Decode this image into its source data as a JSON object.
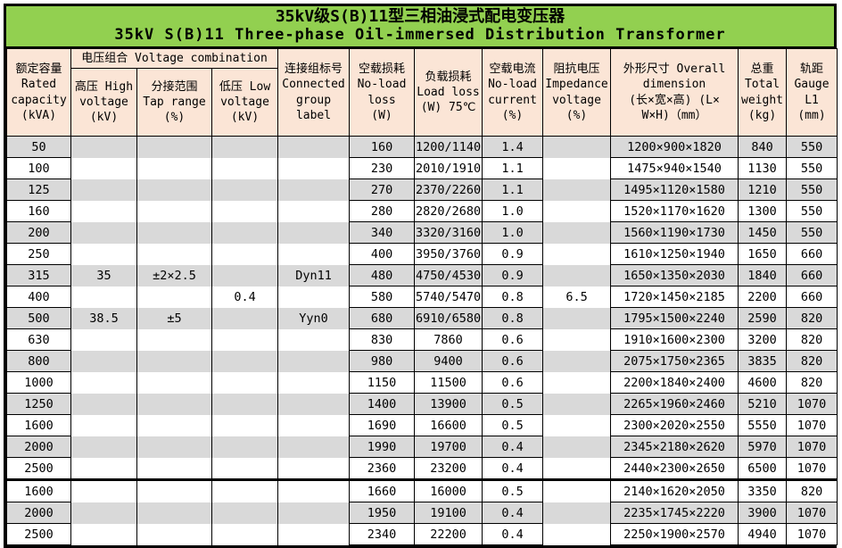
{
  "title": {
    "line1": "35kV级S(B)11型三相油浸式配电变压器",
    "line2": "35kV S(B)11 Three-phase Oil-immersed Distribution Transformer"
  },
  "colors": {
    "title_bg": "#92D050",
    "header_bg": "#FBE5D6",
    "stripe_gray": "#D9D9D9",
    "border": "#000000"
  },
  "headers": {
    "capacity": "额定容量\nRated\ncapacity\n(kVA)",
    "voltage_combination": "电压组合 Voltage combination",
    "high_voltage": "高压 High\nvoltage\n(kV)",
    "tap_range": "分接范围\nTap range\n(%)",
    "low_voltage": "低压 Low\nvoltage\n(kV)",
    "connection_group": "连接组标号\nConnected\ngroup\nlabel",
    "no_load_loss": "空载损耗\nNo-load\nloss\n(W)",
    "load_loss": "负载损耗\nLoad loss\n(W) 75℃",
    "no_load_current": "空载电流\nNo-load\ncurrent\n(%)",
    "impedance_voltage": "阻抗电压\nImpedance\nvoltage\n(%)",
    "dimensions": "外形尺寸 Overall\ndimension\n(长×宽×高) (L×\nW×H)（mm）",
    "total_weight": "总重\nTotal\nweight\n(kg)",
    "gauge": "轨距\nGauge\nL1\n(mm)"
  },
  "table": {
    "groups": [
      {
        "rows": [
          {
            "capacity": "50",
            "high_voltage": "",
            "tap_range": "",
            "low_voltage": "",
            "connection_group": "",
            "no_load_loss": "160",
            "load_loss": "1200/1140",
            "no_load_current": "1.4",
            "impedance_voltage": "",
            "dimensions": "1200×900×1820",
            "total_weight": "840",
            "gauge": "550"
          },
          {
            "capacity": "100",
            "high_voltage": "",
            "tap_range": "",
            "low_voltage": "",
            "connection_group": "",
            "no_load_loss": "230",
            "load_loss": "2010/1910",
            "no_load_current": "1.1",
            "impedance_voltage": "",
            "dimensions": "1475×940×1540",
            "total_weight": "1130",
            "gauge": "550"
          },
          {
            "capacity": "125",
            "high_voltage": "",
            "tap_range": "",
            "low_voltage": "",
            "connection_group": "",
            "no_load_loss": "270",
            "load_loss": "2370/2260",
            "no_load_current": "1.1",
            "impedance_voltage": "",
            "dimensions": "1495×1120×1580",
            "total_weight": "1210",
            "gauge": "550"
          },
          {
            "capacity": "160",
            "high_voltage": "",
            "tap_range": "",
            "low_voltage": "",
            "connection_group": "",
            "no_load_loss": "280",
            "load_loss": "2820/2680",
            "no_load_current": "1.0",
            "impedance_voltage": "",
            "dimensions": "1520×1170×1620",
            "total_weight": "1300",
            "gauge": "550"
          },
          {
            "capacity": "200",
            "high_voltage": "",
            "tap_range": "",
            "low_voltage": "",
            "connection_group": "",
            "no_load_loss": "340",
            "load_loss": "3320/3160",
            "no_load_current": "1.0",
            "impedance_voltage": "",
            "dimensions": "1560×1190×1730",
            "total_weight": "1450",
            "gauge": "550"
          },
          {
            "capacity": "250",
            "high_voltage": "",
            "tap_range": "",
            "low_voltage": "",
            "connection_group": "",
            "no_load_loss": "400",
            "load_loss": "3950/3760",
            "no_load_current": "0.9",
            "impedance_voltage": "",
            "dimensions": "1610×1250×1940",
            "total_weight": "1650",
            "gauge": "660"
          },
          {
            "capacity": "315",
            "high_voltage": "35",
            "tap_range": "±2×2.5",
            "low_voltage": "",
            "connection_group": "Dyn11",
            "no_load_loss": "480",
            "load_loss": "4750/4530",
            "no_load_current": "0.9",
            "impedance_voltage": "",
            "dimensions": "1650×1350×2030",
            "total_weight": "1840",
            "gauge": "660"
          },
          {
            "capacity": "400",
            "high_voltage": "",
            "tap_range": "",
            "low_voltage": "0.4",
            "connection_group": "",
            "no_load_loss": "580",
            "load_loss": "5740/5470",
            "no_load_current": "0.8",
            "impedance_voltage": "6.5",
            "dimensions": "1720×1450×2185",
            "total_weight": "2200",
            "gauge": "660"
          },
          {
            "capacity": "500",
            "high_voltage": "38.5",
            "tap_range": "±5",
            "low_voltage": "",
            "connection_group": "Yyn0",
            "no_load_loss": "680",
            "load_loss": "6910/6580",
            "no_load_current": "0.8",
            "impedance_voltage": "",
            "dimensions": "1795×1500×2240",
            "total_weight": "2590",
            "gauge": "820"
          },
          {
            "capacity": "630",
            "high_voltage": "",
            "tap_range": "",
            "low_voltage": "",
            "connection_group": "",
            "no_load_loss": "830",
            "load_loss": "7860",
            "no_load_current": "0.6",
            "impedance_voltage": "",
            "dimensions": "1910×1600×2300",
            "total_weight": "3200",
            "gauge": "820"
          },
          {
            "capacity": "800",
            "high_voltage": "",
            "tap_range": "",
            "low_voltage": "",
            "connection_group": "",
            "no_load_loss": "980",
            "load_loss": "9400",
            "no_load_current": "0.6",
            "impedance_voltage": "",
            "dimensions": "2075×1750×2365",
            "total_weight": "3835",
            "gauge": "820"
          },
          {
            "capacity": "1000",
            "high_voltage": "",
            "tap_range": "",
            "low_voltage": "",
            "connection_group": "",
            "no_load_loss": "1150",
            "load_loss": "11500",
            "no_load_current": "0.6",
            "impedance_voltage": "",
            "dimensions": "2200×1840×2400",
            "total_weight": "4600",
            "gauge": "820"
          },
          {
            "capacity": "1250",
            "high_voltage": "",
            "tap_range": "",
            "low_voltage": "",
            "connection_group": "",
            "no_load_loss": "1400",
            "load_loss": "13900",
            "no_load_current": "0.5",
            "impedance_voltage": "",
            "dimensions": "2265×1960×2460",
            "total_weight": "5210",
            "gauge": "1070"
          },
          {
            "capacity": "1600",
            "high_voltage": "",
            "tap_range": "",
            "low_voltage": "",
            "connection_group": "",
            "no_load_loss": "1690",
            "load_loss": "16600",
            "no_load_current": "0.5",
            "impedance_voltage": "",
            "dimensions": "2300×2020×2550",
            "total_weight": "5550",
            "gauge": "1070"
          },
          {
            "capacity": "2000",
            "high_voltage": "",
            "tap_range": "",
            "low_voltage": "",
            "connection_group": "",
            "no_load_loss": "1990",
            "load_loss": "19700",
            "no_load_current": "0.4",
            "impedance_voltage": "",
            "dimensions": "2345×2180×2620",
            "total_weight": "5970",
            "gauge": "1070"
          },
          {
            "capacity": "2500",
            "high_voltage": "",
            "tap_range": "",
            "low_voltage": "",
            "connection_group": "",
            "no_load_loss": "2360",
            "load_loss": "23200",
            "no_load_current": "0.4",
            "impedance_voltage": "",
            "dimensions": "2440×2300×2650",
            "total_weight": "6500",
            "gauge": "1070"
          }
        ]
      },
      {
        "rows": [
          {
            "capacity": "1600",
            "high_voltage": "",
            "tap_range": "",
            "low_voltage": "",
            "connection_group": "",
            "no_load_loss": "1660",
            "load_loss": "16000",
            "no_load_current": "0.5",
            "impedance_voltage": "",
            "dimensions": "2140×1620×2050",
            "total_weight": "3350",
            "gauge": "820"
          },
          {
            "capacity": "2000",
            "high_voltage": "",
            "tap_range": "",
            "low_voltage": "",
            "connection_group": "",
            "no_load_loss": "1950",
            "load_loss": "19100",
            "no_load_current": "0.4",
            "impedance_voltage": "",
            "dimensions": "2235×1745×2220",
            "total_weight": "3900",
            "gauge": "1070"
          },
          {
            "capacity": "2500",
            "high_voltage": "",
            "tap_range": "",
            "low_voltage": "",
            "connection_group": "",
            "no_load_loss": "2340",
            "load_loss": "22200",
            "no_load_current": "0.4",
            "impedance_voltage": "",
            "dimensions": "2250×1900×2570",
            "total_weight": "4940",
            "gauge": "1070"
          }
        ]
      }
    ]
  }
}
